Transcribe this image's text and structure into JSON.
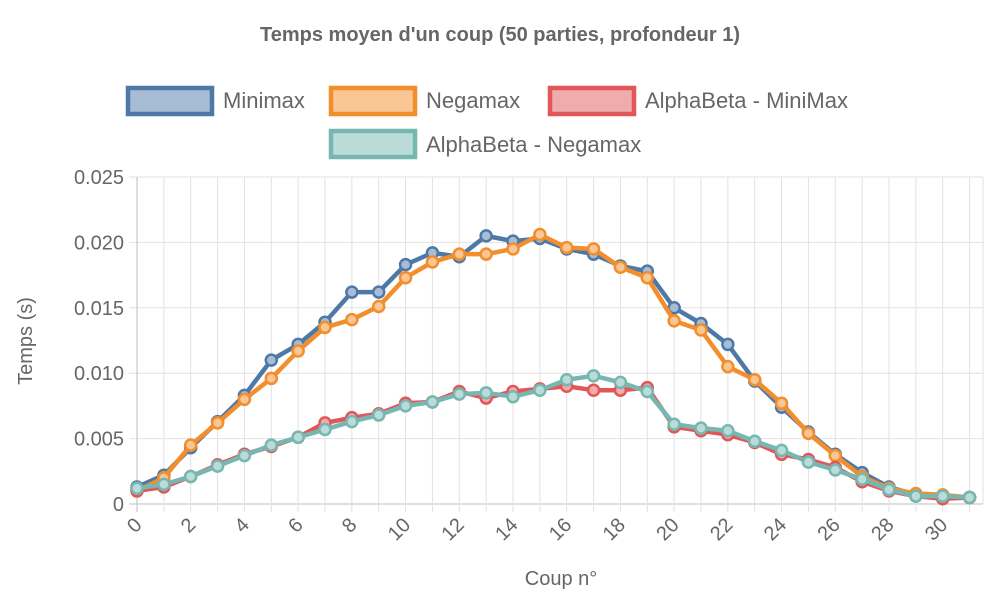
{
  "chart_data": {
    "type": "line",
    "title": "Temps moyen d'un coup (50 parties, profondeur 1)",
    "xlabel": "Coup n°",
    "ylabel": "Temps (s)",
    "x": [
      0,
      1,
      2,
      3,
      4,
      5,
      6,
      7,
      8,
      9,
      10,
      11,
      12,
      13,
      14,
      15,
      16,
      17,
      18,
      19,
      20,
      21,
      22,
      23,
      24,
      25,
      26,
      27,
      28,
      29,
      30,
      31
    ],
    "x_ticks": [
      "0",
      "2",
      "4",
      "6",
      "8",
      "10",
      "12",
      "14",
      "16",
      "18",
      "20",
      "22",
      "24",
      "26",
      "28",
      "30"
    ],
    "y_ticks": [
      "0",
      "0.005",
      "0.010",
      "0.015",
      "0.020",
      "0.025"
    ],
    "ylim": [
      0,
      0.025
    ],
    "grid": true,
    "legend_position": "top",
    "series": [
      {
        "name": "Minimax",
        "color": "#4e79a7",
        "fill": "#a9bcd6",
        "values": [
          0.0013,
          0.0022,
          0.0043,
          0.0063,
          0.0083,
          0.011,
          0.0122,
          0.0139,
          0.0162,
          0.0162,
          0.0183,
          0.0192,
          0.0189,
          0.0205,
          0.0201,
          0.0203,
          0.0195,
          0.0191,
          0.0182,
          0.0178,
          0.015,
          0.0138,
          0.0122,
          0.0094,
          0.0074,
          0.0055,
          0.0038,
          0.0024,
          0.0013,
          0.0007,
          0.0005,
          0.0005
        ]
      },
      {
        "name": "Negamax",
        "color": "#f28e2b",
        "fill": "#f9c695",
        "values": [
          0.001,
          0.002,
          0.0045,
          0.0062,
          0.008,
          0.0096,
          0.0117,
          0.0135,
          0.0141,
          0.0151,
          0.0173,
          0.0185,
          0.0191,
          0.0191,
          0.0195,
          0.0206,
          0.0196,
          0.0195,
          0.0181,
          0.0173,
          0.014,
          0.0133,
          0.0105,
          0.0095,
          0.0077,
          0.0054,
          0.0037,
          0.0021,
          0.0012,
          0.0008,
          0.0007,
          0.0005
        ]
      },
      {
        "name": "AlphaBeta - MiniMax",
        "color": "#e15759",
        "fill": "#f0abac",
        "values": [
          0.001,
          0.0013,
          0.0021,
          0.003,
          0.0038,
          0.0044,
          0.0051,
          0.0062,
          0.0066,
          0.0069,
          0.0077,
          0.0078,
          0.0086,
          0.0081,
          0.0086,
          0.0088,
          0.009,
          0.0087,
          0.0087,
          0.0089,
          0.0059,
          0.0056,
          0.0053,
          0.0047,
          0.0038,
          0.0034,
          0.0028,
          0.0017,
          0.001,
          0.0006,
          0.0004,
          0.0005
        ]
      },
      {
        "name": "AlphaBeta - Negamax",
        "color": "#76b7b2",
        "fill": "#bbdbd8",
        "values": [
          0.0012,
          0.0015,
          0.0021,
          0.0029,
          0.0037,
          0.0045,
          0.0051,
          0.0057,
          0.0063,
          0.0068,
          0.0075,
          0.0078,
          0.0084,
          0.0085,
          0.0082,
          0.0087,
          0.0095,
          0.0098,
          0.0093,
          0.0086,
          0.0061,
          0.0058,
          0.0056,
          0.0048,
          0.0041,
          0.0032,
          0.0026,
          0.0019,
          0.0011,
          0.0006,
          0.0006,
          0.0005
        ]
      }
    ]
  }
}
